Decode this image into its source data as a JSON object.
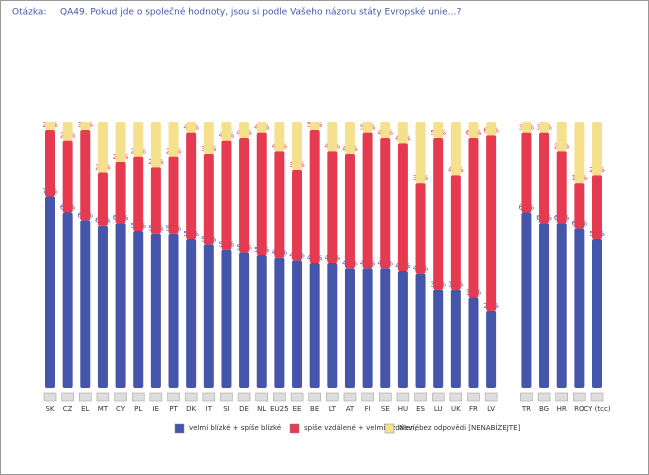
{
  "chart_data": {
    "type": "stacked-bar",
    "question_label": "Otázka:",
    "title": "QA49. Pokud jde o společné hodnoty, jsou si podle Vašeho názoru státy Evropské unie…?",
    "categories": [
      "SK",
      "CZ",
      "EL",
      "MT",
      "CY",
      "PL",
      "IE",
      "PT",
      "DK",
      "IT",
      "SI",
      "DE",
      "NL",
      "EU25",
      "EE",
      "BE",
      "LT",
      "AT",
      "FI",
      "SE",
      "HU",
      "ES",
      "LU",
      "UK",
      "FR",
      "LV",
      null,
      "TR",
      "BG",
      "HR",
      "RO",
      "CY (tcc)"
    ],
    "ylim": [
      0,
      100
    ],
    "series": [
      {
        "name": "velmi blízké + spíše blízké",
        "color": "#4455aa",
        "values": [
          72,
          66,
          63,
          61,
          62,
          59,
          58,
          58,
          56,
          54,
          52,
          51,
          50,
          49,
          48,
          47,
          47,
          45,
          45,
          45,
          44,
          43,
          37,
          37,
          34,
          29,
          null,
          66,
          62,
          62,
          60,
          56
        ],
        "value_labels": [
          "72%",
          "66%",
          "63%",
          "61%",
          "62%",
          "59%",
          "58%",
          "58%",
          "56%",
          "54%",
          "52%",
          "51%",
          "50%",
          "49%",
          "48%",
          "47%",
          "47%",
          "45%",
          "45%",
          "45%",
          "44%",
          "43%",
          "37%",
          "37%",
          "34%",
          "29%",
          null,
          "66%",
          "62%",
          "62%",
          "60%",
          "56%"
        ]
      },
      {
        "name": "spíše vzdálené + velmi vzdálené",
        "color": "#e53a50",
        "values": [
          25,
          27,
          34,
          20,
          23,
          28,
          25,
          29,
          40,
          34,
          41,
          43,
          46,
          40,
          34,
          50,
          42,
          43,
          51,
          49,
          48,
          34,
          57,
          43,
          60,
          66,
          null,
          30,
          34,
          27,
          17,
          24
        ],
        "value_labels": [
          "25%",
          "27%",
          "34%",
          "20%",
          "23%",
          "28%",
          "25%",
          "29%",
          "40%",
          "34%",
          "41%",
          "43%",
          "46%",
          "40%",
          "34%",
          "50%",
          "42%",
          "43%",
          "51%",
          "49%",
          "48%",
          "34%",
          "57%",
          "43%",
          "60%",
          "66%",
          null,
          "30%",
          "34%",
          "27%",
          "17%",
          "24%"
        ]
      },
      {
        "name": "Neví, bez odpovědi [NENABÍZEJTE]",
        "color": "#f5e08e",
        "values": [
          3,
          7,
          3,
          19,
          15,
          13,
          17,
          13,
          4,
          12,
          7,
          6,
          4,
          11,
          18,
          3,
          11,
          12,
          4,
          6,
          8,
          23,
          6,
          20,
          6,
          5,
          null,
          4,
          4,
          11,
          23,
          20
        ]
      }
    ]
  }
}
